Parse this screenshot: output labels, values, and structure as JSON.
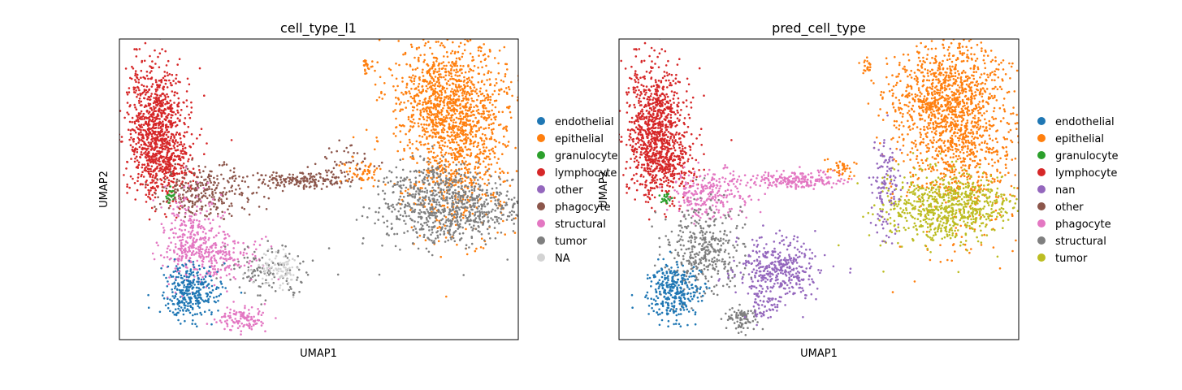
{
  "chart_data": [
    {
      "type": "scatter",
      "title": "cell_type_l1",
      "xlabel": "UMAP1",
      "ylabel": "UMAP2",
      "ticks": "none",
      "grid": false,
      "legend_placement": "right (outside)",
      "legend": [
        {
          "label": "endothelial",
          "color": "#1f77b4"
        },
        {
          "label": "epithelial",
          "color": "#ff7f0e"
        },
        {
          "label": "granulocyte",
          "color": "#2ca02c"
        },
        {
          "label": "lymphocyte",
          "color": "#d62728"
        },
        {
          "label": "other",
          "color": "#9467bd"
        },
        {
          "label": "phagocyte",
          "color": "#8c564b"
        },
        {
          "label": "structural",
          "color": "#e377c2"
        },
        {
          "label": "tumor",
          "color": "#7f7f7f"
        },
        {
          "label": "NA",
          "color": "#d3d3d3"
        }
      ]
    },
    {
      "type": "scatter",
      "title": "pred_cell_type",
      "xlabel": "UMAP1",
      "ylabel": "UMAP2",
      "ticks": "none",
      "grid": false,
      "legend_placement": "right (outside)",
      "legend": [
        {
          "label": "endothelial",
          "color": "#1f77b4"
        },
        {
          "label": "epithelial",
          "color": "#ff7f0e"
        },
        {
          "label": "granulocyte",
          "color": "#2ca02c"
        },
        {
          "label": "lymphocyte",
          "color": "#d62728"
        },
        {
          "label": "nan",
          "color": "#9467bd"
        },
        {
          "label": "other",
          "color": "#8c564b"
        },
        {
          "label": "phagocyte",
          "color": "#e377c2"
        },
        {
          "label": "structural",
          "color": "#7f7f7f"
        },
        {
          "label": "tumor",
          "color": "#bcbd22"
        }
      ]
    }
  ]
}
